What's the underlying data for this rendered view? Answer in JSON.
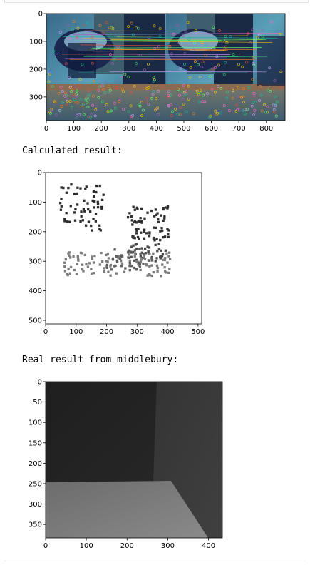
{
  "outputs": [
    {
      "type": "text",
      "text": "Calculated result:"
    },
    {
      "type": "text",
      "text": "Real result from middlebury:"
    }
  ],
  "plots": {
    "matches": {
      "xticks": [
        "0",
        "100",
        "200",
        "300",
        "400",
        "500",
        "600",
        "700",
        "800"
      ],
      "yticks": [
        "0",
        "100",
        "200",
        "300"
      ],
      "xlim": [
        0,
        868
      ],
      "ylim": [
        385,
        0
      ]
    },
    "calculated": {
      "xticks": [
        "0",
        "100",
        "200",
        "300",
        "400",
        "500"
      ],
      "yticks": [
        "0",
        "100",
        "200",
        "300",
        "400",
        "500"
      ],
      "xlim": [
        0,
        512
      ],
      "ylim": [
        512,
        0
      ]
    },
    "real": {
      "xticks": [
        "0",
        "100",
        "200",
        "300",
        "400"
      ],
      "yticks": [
        "0",
        "50",
        "100",
        "150",
        "200",
        "250",
        "300",
        "350"
      ],
      "xlim": [
        0,
        434
      ],
      "ylim": [
        383,
        0
      ]
    }
  }
}
